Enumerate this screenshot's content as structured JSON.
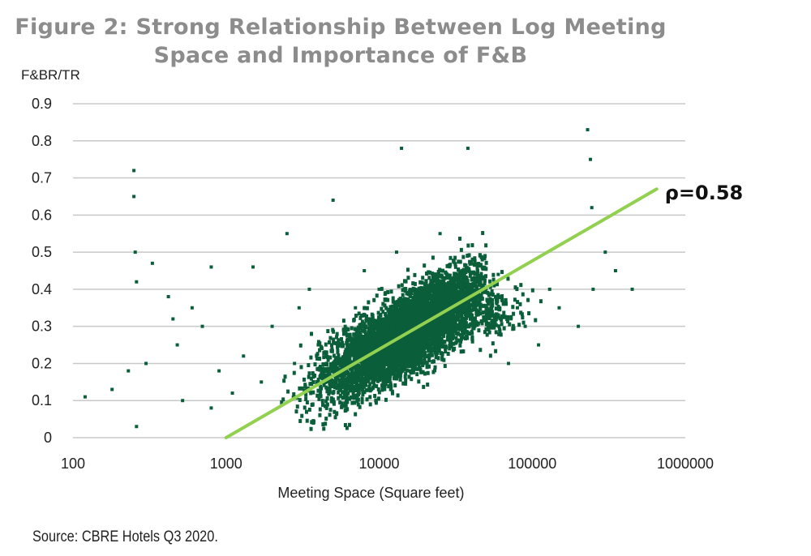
{
  "title_lines": [
    "Figure 2: Strong Relationship Between Log Meeting",
    "Space and Importance of F&B"
  ],
  "source": "Source: CBRE Hotels Q3 2020.",
  "chart_data": {
    "type": "scatter",
    "title": "Figure 2: Strong Relationship Between Log Meeting Space and Importance of F&B",
    "xlabel": "Meeting Space (Square feet)",
    "ylabel": "F&BR/TR",
    "xscale": "log",
    "xlim": [
      100,
      1000000
    ],
    "ylim": [
      0,
      0.9
    ],
    "x_ticks": [
      100,
      1000,
      10000,
      100000,
      1000000
    ],
    "x_tick_labels": [
      "100",
      "1000",
      "10000",
      "100000",
      "1000000"
    ],
    "y_ticks": [
      0,
      0.1,
      0.2,
      0.3,
      0.4,
      0.5,
      0.6,
      0.7,
      0.8,
      0.9
    ],
    "y_tick_labels": [
      "0",
      "0.1",
      "0.2",
      "0.3",
      "0.4",
      "0.5",
      "0.6",
      "0.7",
      "0.8",
      "0.9"
    ],
    "grid": "horizontal",
    "point_color": "#0b5e3a",
    "series": [
      {
        "x": [
          120,
          180,
          230,
          250,
          250,
          255,
          260,
          260,
          300,
          330,
          420,
          450,
          480,
          520,
          600,
          700,
          800,
          800,
          900,
          1100,
          1300,
          1500,
          1700,
          2000,
          2500,
          2800,
          3000,
          3500,
          4000,
          5000,
          5000,
          6000,
          7000,
          8000,
          9000,
          10000,
          12000,
          13000,
          14000,
          15000,
          17000,
          20000,
          25000,
          30000,
          35000,
          38000,
          40000,
          50000,
          60000,
          70000,
          80000,
          90000,
          110000,
          130000,
          150000,
          200000,
          230000,
          240000,
          245000,
          250000,
          300000,
          350000,
          450000
        ],
        "y": [
          0.11,
          0.13,
          0.18,
          0.72,
          0.65,
          0.5,
          0.42,
          0.03,
          0.2,
          0.47,
          0.38,
          0.32,
          0.25,
          0.1,
          0.35,
          0.3,
          0.46,
          0.08,
          0.18,
          0.12,
          0.22,
          0.46,
          0.15,
          0.3,
          0.55,
          0.2,
          0.35,
          0.4,
          0.25,
          0.64,
          0.1,
          0.3,
          0.35,
          0.45,
          0.28,
          0.4,
          0.3,
          0.5,
          0.78,
          0.35,
          0.25,
          0.4,
          0.55,
          0.3,
          0.45,
          0.78,
          0.38,
          0.32,
          0.44,
          0.2,
          0.35,
          0.3,
          0.25,
          0.4,
          0.35,
          0.3,
          0.83,
          0.75,
          0.62,
          0.4,
          0.5,
          0.45,
          0.4
        ]
      }
    ],
    "trendline": {
      "x": [
        1000,
        650000
      ],
      "y": [
        0,
        0.67
      ],
      "color": "#92d050"
    },
    "annotations": [
      {
        "text": "ρ=0.58",
        "x": 700000,
        "y": 0.66
      }
    ]
  }
}
